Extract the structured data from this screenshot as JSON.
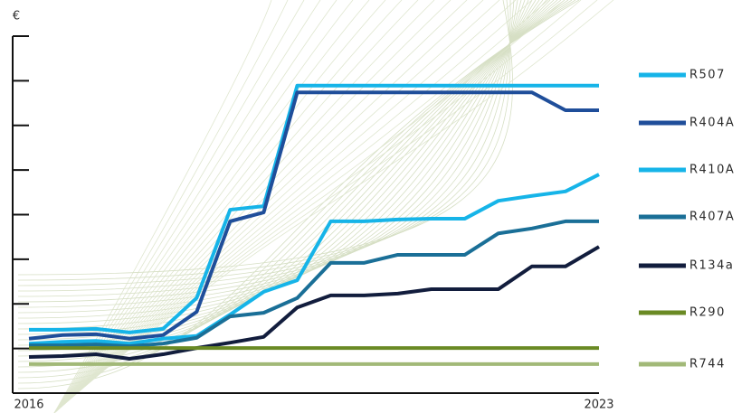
{
  "chart_data": {
    "type": "line",
    "y_label": "€",
    "categories": [
      "2016",
      null,
      null,
      null,
      null,
      null,
      null,
      null,
      null,
      null,
      null,
      null,
      null,
      null,
      null,
      null,
      null,
      "2023"
    ],
    "ylim": [
      0,
      8
    ],
    "yticks": [
      0,
      1,
      2,
      3,
      4,
      5,
      6,
      7,
      8
    ],
    "series": [
      {
        "name": "R507",
        "color": "#16b4e8",
        "values": [
          1.42,
          1.42,
          1.44,
          1.36,
          1.44,
          2.13,
          4.11,
          4.19,
          6.89,
          6.89,
          6.89,
          6.89,
          6.89,
          6.89,
          6.89,
          6.89,
          6.89,
          6.89
        ]
      },
      {
        "name": "R404A",
        "color": "#1f4e9a",
        "values": [
          1.22,
          1.3,
          1.32,
          1.22,
          1.3,
          1.82,
          3.85,
          4.05,
          6.74,
          6.74,
          6.74,
          6.74,
          6.74,
          6.74,
          6.74,
          6.74,
          6.34,
          6.34
        ]
      },
      {
        "name": "R410A",
        "color": "#16b4e8",
        "values": [
          1.11,
          1.15,
          1.17,
          1.11,
          1.22,
          1.28,
          1.76,
          2.27,
          2.53,
          3.85,
          3.85,
          3.89,
          3.91,
          3.91,
          4.31,
          4.42,
          4.52,
          4.9
        ]
      },
      {
        "name": "R407A",
        "color": "#1a6f97",
        "values": [
          1.07,
          1.07,
          1.09,
          1.05,
          1.11,
          1.24,
          1.72,
          1.8,
          2.13,
          2.92,
          2.92,
          3.1,
          3.1,
          3.1,
          3.58,
          3.69,
          3.85,
          3.85
        ]
      },
      {
        "name": "R134a",
        "color": "#121d3d",
        "values": [
          0.81,
          0.83,
          0.87,
          0.77,
          0.87,
          1.01,
          1.13,
          1.26,
          1.92,
          2.19,
          2.19,
          2.23,
          2.33,
          2.33,
          2.33,
          2.84,
          2.84,
          3.28
        ]
      },
      {
        "name": "R290",
        "color": "#6a8a24",
        "values": [
          1.01,
          1.01,
          1.01,
          1.01,
          1.01,
          1.01,
          1.01,
          1.01,
          1.01,
          1.01,
          1.01,
          1.01,
          1.01,
          1.01,
          1.01,
          1.01,
          1.01,
          1.01
        ]
      },
      {
        "name": "R744",
        "color": "#a2b978",
        "values": [
          0.65,
          0.65,
          0.65,
          0.65,
          0.65,
          0.65,
          0.65,
          0.65,
          0.65,
          0.65,
          0.65,
          0.65,
          0.65,
          0.65,
          0.65,
          0.65,
          0.65,
          0.65
        ]
      }
    ]
  }
}
